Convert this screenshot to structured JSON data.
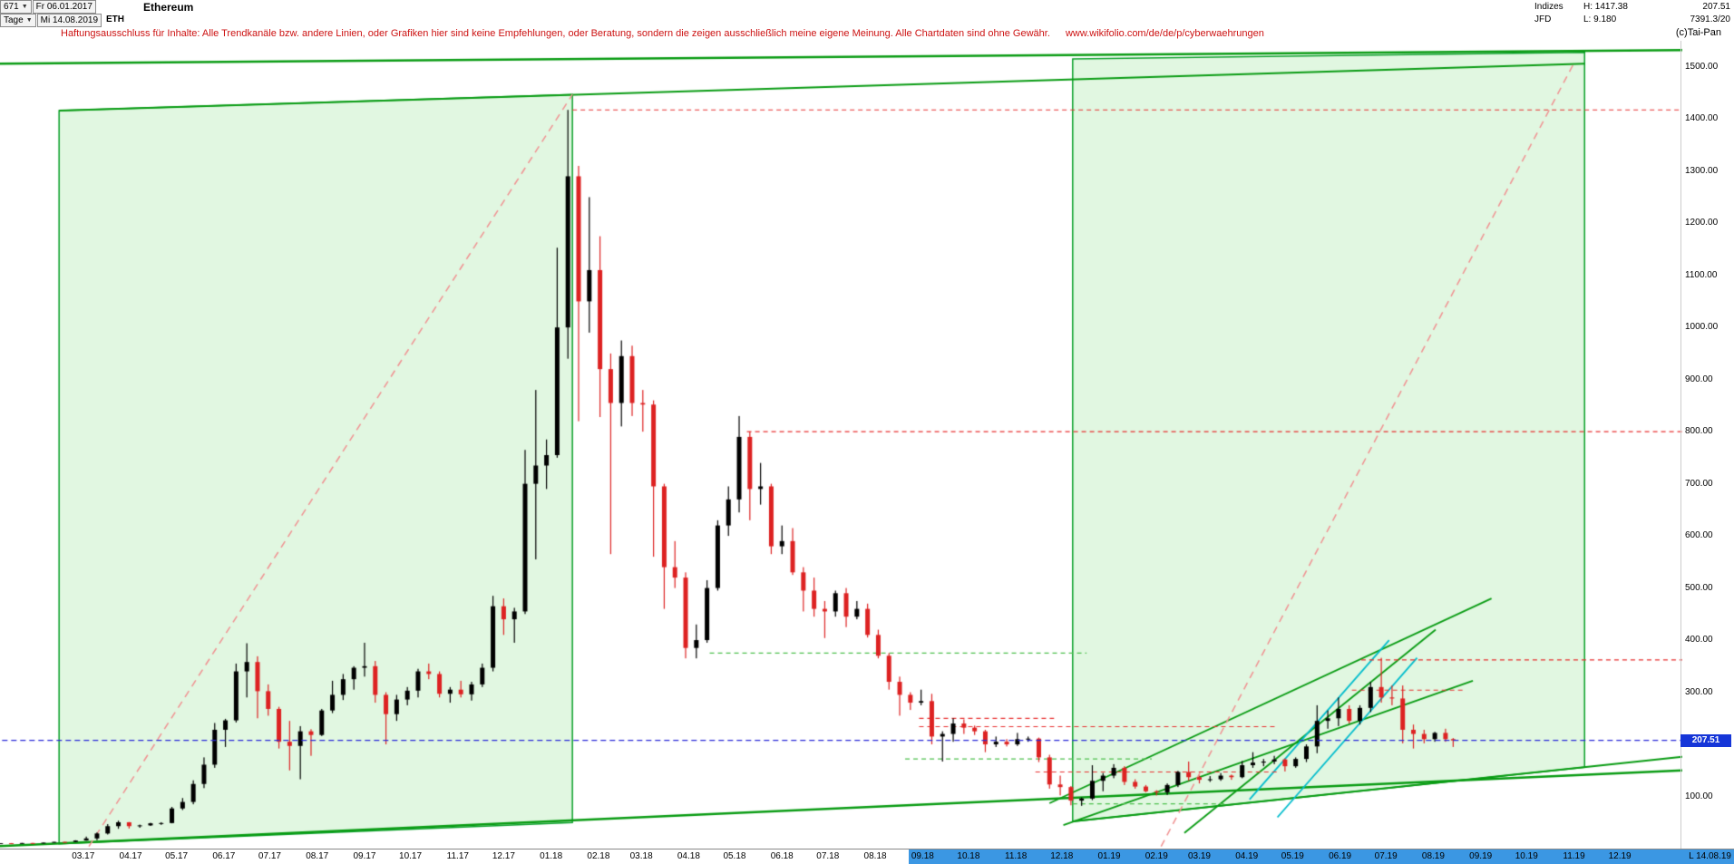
{
  "header": {
    "bar_count": "671",
    "start_date": "Fr 06.01.2017",
    "interval": "Tage",
    "end_date": "Mi 14.08.2019",
    "symbol": "ETH",
    "title": "Ethereum",
    "indizes_label": "Indizes",
    "source": "JFD",
    "high": "H: 1417.38",
    "low": "L: 9.180",
    "last_price": "207.51",
    "volume": "7391.3/20",
    "copyright": "(c)Tai-Pan"
  },
  "disclaimer": {
    "text": "Haftungsausschluss für Inhalte: Alle Trendkanäle bzw. andere Linien, oder Grafiken hier sind keine Empfehlungen, oder Beratung, sondern die zeigen ausschließlich meine eigene Meinung. Alle Chartdaten sind ohne Gewähr.",
    "url": "www.wikifolio.com/de/de/p/cyberwaehrungen"
  },
  "axis": {
    "highlight_start_label": "09.18"
  },
  "chart_data": {
    "type": "candlestick",
    "title": "Ethereum",
    "interval": "Tage",
    "date_range": "06.01.2017 - 14.08.2019",
    "high": 1417.38,
    "low": 9.18,
    "last": 207.51,
    "last_label": "207.51",
    "last_x_label": "L 14.08.19",
    "ylim": [
      0,
      1550
    ],
    "xlim_months": [
      0.15,
      36.3
    ],
    "y_tick_labels": [
      "1500.00",
      "1400.00",
      "1300.00",
      "1200.00",
      "1100.00",
      "1000.00",
      "900.00",
      "800.00",
      "700.00",
      "600.00",
      "500.00",
      "400.00",
      "300.00",
      "200.00",
      "100.00"
    ],
    "x_tick_labels": [
      "03.17",
      "04.17",
      "05.17",
      "06.17",
      "07.17",
      "08.17",
      "09.17",
      "10.17",
      "11.17",
      "12.17",
      "01.18",
      "02.18",
      "03.18",
      "04.18",
      "05.18",
      "06.18",
      "07.18",
      "08.18",
      "09.18",
      "10.18",
      "11.18",
      "12.18",
      "01.19",
      "02.19",
      "03.19",
      "04.19",
      "05.19",
      "06.19",
      "07.19",
      "08.19",
      "09.19",
      "10.19",
      "11.19",
      "12.19"
    ],
    "up_color": "#000000",
    "down_color": "#dd2222",
    "candles": [
      [
        "2017-01-06",
        10,
        10.4,
        9.18,
        10.3
      ],
      [
        "2017-01-13",
        10.3,
        10.6,
        9.7,
        9.9
      ],
      [
        "2017-01-20",
        9.9,
        10.9,
        9.8,
        10.7
      ],
      [
        "2017-01-27",
        10.7,
        10.9,
        10.4,
        10.6
      ],
      [
        "2017-02-03",
        10.6,
        11.5,
        10.5,
        11.4
      ],
      [
        "2017-02-10",
        11.4,
        13,
        11.2,
        12.9
      ],
      [
        "2017-02-17",
        12.9,
        13.1,
        12.4,
        12.7
      ],
      [
        "2017-02-24",
        12.7,
        16,
        12.5,
        15.5
      ],
      [
        "2017-03-03",
        15.5,
        23,
        15.2,
        19.5
      ],
      [
        "2017-03-10",
        19.5,
        31,
        16,
        29
      ],
      [
        "2017-03-17",
        29,
        47,
        27,
        43
      ],
      [
        "2017-03-24",
        43,
        53.5,
        38,
        50.5
      ],
      [
        "2017-03-31",
        50.5,
        51,
        38.5,
        43
      ],
      [
        "2017-04-07",
        43,
        46,
        40,
        44.5
      ],
      [
        "2017-04-14",
        44.5,
        49.5,
        43.5,
        48.5
      ],
      [
        "2017-04-21",
        48.5,
        50.5,
        45.5,
        49
      ],
      [
        "2017-04-28",
        49,
        80,
        48.5,
        77
      ],
      [
        "2017-05-05",
        77,
        97,
        74,
        89.5
      ],
      [
        "2017-05-12",
        89.5,
        131,
        85,
        124
      ],
      [
        "2017-05-19",
        124,
        175,
        116,
        161
      ],
      [
        "2017-05-26",
        161,
        241,
        155,
        228
      ],
      [
        "2017-06-02",
        228,
        249,
        195,
        246
      ],
      [
        "2017-06-09",
        246,
        355,
        242,
        340
      ],
      [
        "2017-06-16",
        340,
        394,
        290,
        358
      ],
      [
        "2017-06-23",
        358,
        369,
        250,
        302
      ],
      [
        "2017-06-30",
        302,
        315,
        255,
        268
      ],
      [
        "2017-07-07",
        268,
        272,
        192,
        205
      ],
      [
        "2017-07-14",
        205,
        245,
        150,
        197
      ],
      [
        "2017-07-21",
        197,
        235,
        133,
        225
      ],
      [
        "2017-07-28",
        225,
        229,
        178,
        218
      ],
      [
        "2017-08-04",
        218,
        268,
        216,
        265
      ],
      [
        "2017-08-11",
        265,
        322,
        260,
        295
      ],
      [
        "2017-08-18",
        295,
        335,
        285,
        325
      ],
      [
        "2017-08-25",
        325,
        350,
        305,
        347
      ],
      [
        "2017-09-01",
        347,
        395,
        330,
        350
      ],
      [
        "2017-09-08",
        350,
        360,
        280,
        295
      ],
      [
        "2017-09-15",
        295,
        300,
        200,
        258
      ],
      [
        "2017-09-22",
        258,
        295,
        245,
        286
      ],
      [
        "2017-09-29",
        286,
        310,
        275,
        303
      ],
      [
        "2017-10-06",
        303,
        345,
        290,
        340
      ],
      [
        "2017-10-13",
        340,
        355,
        325,
        335
      ],
      [
        "2017-10-20",
        335,
        340,
        290,
        297
      ],
      [
        "2017-10-27",
        297,
        310,
        280,
        305
      ],
      [
        "2017-11-03",
        305,
        322,
        290,
        296
      ],
      [
        "2017-11-10",
        296,
        320,
        284,
        315
      ],
      [
        "2017-11-17",
        315,
        355,
        310,
        347
      ],
      [
        "2017-11-24",
        347,
        485,
        340,
        465
      ],
      [
        "2017-12-01",
        465,
        480,
        410,
        440
      ],
      [
        "2017-12-08",
        440,
        462,
        395,
        455
      ],
      [
        "2017-12-15",
        455,
        765,
        450,
        700
      ],
      [
        "2017-12-22",
        700,
        880,
        555,
        735
      ],
      [
        "2017-12-29",
        735,
        785,
        690,
        755
      ],
      [
        "2018-01-05",
        755,
        1153,
        750,
        1000
      ],
      [
        "2018-01-12",
        1000,
        1417.38,
        940,
        1290
      ],
      [
        "2018-01-19",
        1290,
        1310,
        820,
        1050
      ],
      [
        "2018-01-26",
        1050,
        1250,
        990,
        1110
      ],
      [
        "2018-02-02",
        1110,
        1175,
        828,
        920
      ],
      [
        "2018-02-09",
        920,
        950,
        565,
        855
      ],
      [
        "2018-02-16",
        855,
        975,
        810,
        945
      ],
      [
        "2018-02-23",
        945,
        965,
        830,
        855
      ],
      [
        "2018-03-02",
        855,
        880,
        800,
        852
      ],
      [
        "2018-03-09",
        852,
        860,
        560,
        695
      ],
      [
        "2018-03-16",
        695,
        700,
        460,
        540
      ],
      [
        "2018-03-23",
        540,
        590,
        500,
        520
      ],
      [
        "2018-03-30",
        520,
        530,
        365,
        385
      ],
      [
        "2018-04-06",
        385,
        430,
        365,
        400
      ],
      [
        "2018-04-13",
        400,
        515,
        395,
        500
      ],
      [
        "2018-04-20",
        500,
        630,
        495,
        620
      ],
      [
        "2018-04-27",
        620,
        695,
        600,
        670
      ],
      [
        "2018-05-04",
        670,
        830,
        645,
        790
      ],
      [
        "2018-05-11",
        790,
        800,
        630,
        690
      ],
      [
        "2018-05-18",
        690,
        740,
        660,
        695
      ],
      [
        "2018-05-25",
        695,
        700,
        565,
        580
      ],
      [
        "2018-06-01",
        580,
        620,
        565,
        590
      ],
      [
        "2018-06-08",
        590,
        615,
        525,
        530
      ],
      [
        "2018-06-15",
        530,
        540,
        455,
        495
      ],
      [
        "2018-06-22",
        495,
        520,
        445,
        460
      ],
      [
        "2018-06-29",
        460,
        475,
        404,
        455
      ],
      [
        "2018-07-06",
        455,
        495,
        445,
        490
      ],
      [
        "2018-07-13",
        490,
        500,
        425,
        445
      ],
      [
        "2018-07-20",
        445,
        475,
        440,
        460
      ],
      [
        "2018-07-27",
        460,
        470,
        405,
        410
      ],
      [
        "2018-08-03",
        410,
        420,
        365,
        370
      ],
      [
        "2018-08-10",
        370,
        375,
        305,
        320
      ],
      [
        "2018-08-17",
        320,
        330,
        255,
        295
      ],
      [
        "2018-08-24",
        295,
        300,
        266,
        280
      ],
      [
        "2018-08-31",
        280,
        305,
        275,
        283
      ],
      [
        "2018-09-07",
        283,
        297,
        200,
        215
      ],
      [
        "2018-09-14",
        215,
        225,
        167,
        220
      ],
      [
        "2018-09-21",
        220,
        250,
        205,
        240
      ],
      [
        "2018-09-28",
        240,
        248,
        220,
        232
      ],
      [
        "2018-10-05",
        232,
        236,
        218,
        225
      ],
      [
        "2018-10-12",
        225,
        228,
        185,
        200
      ],
      [
        "2018-10-19",
        200,
        215,
        195,
        205
      ],
      [
        "2018-10-26",
        205,
        210,
        196,
        200
      ],
      [
        "2018-11-02",
        200,
        222,
        197,
        210
      ],
      [
        "2018-11-09",
        210,
        215,
        205,
        211
      ],
      [
        "2018-11-16",
        211,
        213,
        166,
        175
      ],
      [
        "2018-11-23",
        175,
        180,
        115,
        123
      ],
      [
        "2018-11-30",
        123,
        140,
        102,
        118
      ],
      [
        "2018-12-07",
        118,
        120,
        83,
        92
      ],
      [
        "2018-12-14",
        92,
        98,
        82,
        96
      ],
      [
        "2018-12-21",
        96,
        160,
        93,
        130
      ],
      [
        "2018-12-28",
        130,
        145,
        110,
        140
      ],
      [
        "2019-01-04",
        140,
        162,
        135,
        155
      ],
      [
        "2019-01-11",
        155,
        158,
        122,
        128
      ],
      [
        "2019-01-18",
        128,
        133,
        115,
        119
      ],
      [
        "2019-01-25",
        119,
        122,
        108,
        110
      ],
      [
        "2019-02-01",
        110,
        112,
        102,
        108
      ],
      [
        "2019-02-08",
        108,
        125,
        103,
        122
      ],
      [
        "2019-02-15",
        122,
        149,
        118,
        147
      ],
      [
        "2019-02-22",
        147,
        167,
        130,
        137
      ],
      [
        "2019-03-01",
        137,
        140,
        125,
        132
      ],
      [
        "2019-03-08",
        132,
        139,
        128,
        133
      ],
      [
        "2019-03-15",
        133,
        145,
        130,
        140
      ],
      [
        "2019-03-22",
        140,
        142,
        132,
        137
      ],
      [
        "2019-03-29",
        137,
        168,
        135,
        160
      ],
      [
        "2019-04-05",
        160,
        185,
        155,
        165
      ],
      [
        "2019-04-12",
        165,
        172,
        158,
        167
      ],
      [
        "2019-04-19",
        167,
        178,
        162,
        171
      ],
      [
        "2019-04-26",
        171,
        173,
        148,
        158
      ],
      [
        "2019-05-03",
        158,
        175,
        155,
        172
      ],
      [
        "2019-05-10",
        172,
        200,
        166,
        196
      ],
      [
        "2019-05-17",
        196,
        275,
        183,
        245
      ],
      [
        "2019-05-24",
        245,
        265,
        230,
        250
      ],
      [
        "2019-05-31",
        250,
        290,
        235,
        268
      ],
      [
        "2019-06-07",
        268,
        275,
        240,
        245
      ],
      [
        "2019-06-14",
        245,
        275,
        238,
        270
      ],
      [
        "2019-06-21",
        270,
        320,
        262,
        310
      ],
      [
        "2019-06-28",
        310,
        366,
        280,
        290
      ],
      [
        "2019-07-05",
        290,
        313,
        275,
        288
      ],
      [
        "2019-07-12",
        288,
        313,
        202,
        228
      ],
      [
        "2019-07-19",
        228,
        238,
        192,
        220
      ],
      [
        "2019-07-26",
        220,
        228,
        202,
        210
      ],
      [
        "2019-08-02",
        210,
        224,
        205,
        222
      ],
      [
        "2019-08-09",
        222,
        230,
        205,
        210
      ],
      [
        "2019-08-14",
        210,
        212,
        195,
        207.51
      ]
    ],
    "overlays": {
      "regions": [
        {
          "name": "bull-channel-2017",
          "pts": [
            [
              1.42,
              1416
            ],
            [
              12.45,
              1447
            ],
            [
              12.45,
              50
            ],
            [
              1.42,
              9
            ]
          ],
          "fill": "rgba(120,220,120,0.22)",
          "stroke": "#0aa02a"
        },
        {
          "name": "bull-channel-2019",
          "pts": [
            [
              23.2,
              1515
            ],
            [
              34.2,
              1528
            ],
            [
              34.2,
              156
            ],
            [
              23.2,
              52
            ]
          ],
          "fill": "rgba(120,220,120,0.22)",
          "stroke": "#0aa02a"
        }
      ],
      "lines": [
        {
          "name": "channel-top-outer",
          "m1": 0,
          "p1": 1506,
          "m2": 36.3,
          "p2": 1532,
          "color": "#089b12",
          "w": 2.5
        },
        {
          "name": "channel-top-inner",
          "m1": 1.42,
          "p1": 1416,
          "m2": 34.2,
          "p2": 1506,
          "color": "#089b12",
          "w": 2
        },
        {
          "name": "long-term-support",
          "m1": 0,
          "p1": 4,
          "m2": 36.3,
          "p2": 150,
          "color": "#089b12",
          "w": 2.5
        },
        {
          "name": "support-parallel",
          "m1": 23.2,
          "p1": 52,
          "m2": 36.3,
          "p2": 176,
          "color": "#089b12",
          "w": 2
        },
        {
          "name": "trend-2019-a",
          "m1": 22.7,
          "p1": 87,
          "m2": 32.2,
          "p2": 480,
          "color": "#089b12",
          "w": 1.8
        },
        {
          "name": "trend-2019-b",
          "m1": 23.0,
          "p1": 45,
          "m2": 31.8,
          "p2": 322,
          "color": "#089b12",
          "w": 1.8
        },
        {
          "name": "trend-2019-c",
          "m1": 25.6,
          "p1": 30,
          "m2": 31.0,
          "p2": 420,
          "color": "#089b12",
          "w": 1.8
        },
        {
          "name": "cyan-channel-1",
          "m1": 27.0,
          "p1": 94,
          "m2": 30.0,
          "p2": 400,
          "color": "#00bccc",
          "w": 1.8
        },
        {
          "name": "cyan-channel-2",
          "m1": 27.6,
          "p1": 60,
          "m2": 30.6,
          "p2": 366,
          "color": "#00bccc",
          "w": 1.8
        },
        {
          "name": "rally-line-2017",
          "m1": 2.06,
          "p1": 4,
          "m2": 12.45,
          "p2": 1447,
          "color": "#f09090",
          "w": 1.5,
          "dash": [
            8,
            6
          ]
        },
        {
          "name": "rally-projection-2019",
          "m1": 25.1,
          "p1": 4,
          "m2": 34.0,
          "p2": 1512,
          "color": "#f09090",
          "w": 1.5,
          "dash": [
            8,
            6
          ]
        }
      ],
      "hlines": [
        {
          "name": "resistance-ath",
          "price": 1417.38,
          "m1": 12.45,
          "m2": 36.3,
          "color": "#e83030",
          "dash": [
            5,
            4
          ]
        },
        {
          "name": "resistance-800",
          "price": 800,
          "m1": 16.2,
          "m2": 36.3,
          "color": "#e83030",
          "dash": [
            5,
            4
          ]
        },
        {
          "name": "resistance-362",
          "price": 362,
          "m1": 29.4,
          "m2": 36.3,
          "color": "#e83030",
          "dash": [
            5,
            4
          ]
        },
        {
          "name": "resistance-304",
          "price": 304,
          "m1": 29.2,
          "m2": 31.6,
          "color": "#e83030",
          "dash": [
            5,
            4
          ]
        },
        {
          "name": "resistance-250",
          "price": 250,
          "m1": 19.9,
          "m2": 22.8,
          "color": "#e83030",
          "dash": [
            5,
            4
          ]
        },
        {
          "name": "resistance-234",
          "price": 234,
          "m1": 19.9,
          "m2": 27.6,
          "color": "#e83030",
          "dash": [
            5,
            4
          ]
        },
        {
          "name": "resistance-147",
          "price": 147,
          "m1": 22.4,
          "m2": 27.6,
          "color": "#e83030",
          "dash": [
            5,
            4
          ]
        },
        {
          "name": "support-375",
          "price": 375,
          "m1": 15.4,
          "m2": 23.5,
          "color": "#4ec04e",
          "dash": [
            5,
            4
          ]
        },
        {
          "name": "support-172",
          "price": 172,
          "m1": 19.6,
          "m2": 24.9,
          "color": "#4ec04e",
          "dash": [
            5,
            4
          ]
        },
        {
          "name": "support-86",
          "price": 86,
          "m1": 23.2,
          "m2": 26.5,
          "color": "#4ec04e",
          "dash": [
            5,
            4
          ]
        },
        {
          "name": "last-price-line",
          "price": 207.51,
          "m1": 0,
          "m2": 36.3,
          "color": "#2929d8",
          "dash": [
            6,
            4
          ],
          "w": 1.2,
          "top": true
        }
      ]
    }
  }
}
